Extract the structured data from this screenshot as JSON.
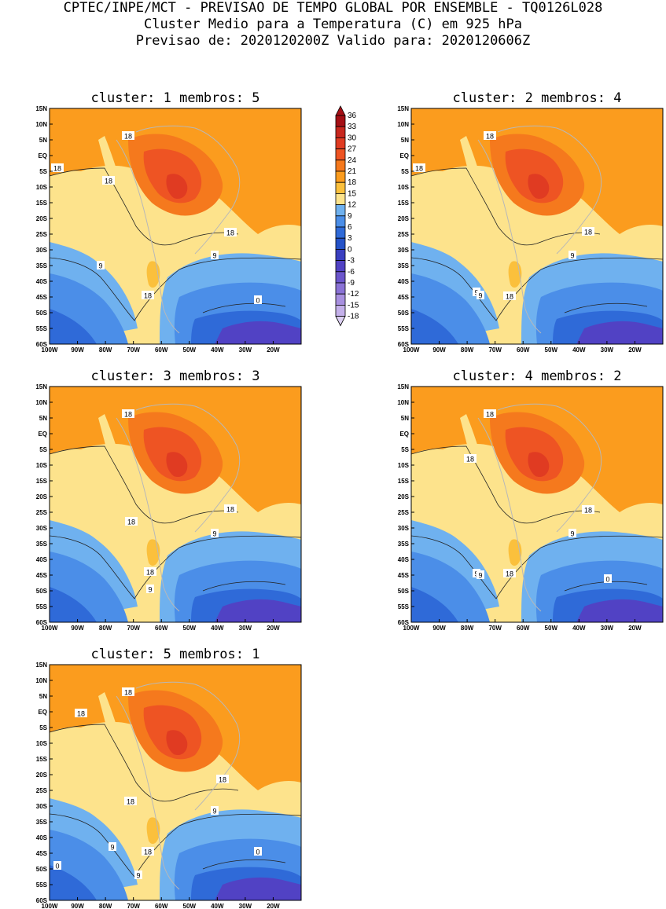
{
  "header": {
    "line1": "CPTEC/INPE/MCT - PREVISAO DE TEMPO GLOBAL POR ENSEMBLE - TQ0126L028",
    "line2": "Cluster Medio para a Temperatura (C) em 925 hPa",
    "line3": "Previsao de: 2020120200Z   Valido para: 2020120606Z"
  },
  "axes": {
    "lat_labels": [
      "15N",
      "10N",
      "5N",
      "EQ",
      "5S",
      "10S",
      "15S",
      "20S",
      "25S",
      "30S",
      "35S",
      "40S",
      "45S",
      "50S",
      "55S",
      "60S"
    ],
    "lon_labels": [
      "100W",
      "90W",
      "80W",
      "70W",
      "60W",
      "50W",
      "40W",
      "30W",
      "20W"
    ]
  },
  "colorbar": {
    "levels": [
      "36",
      "33",
      "30",
      "27",
      "24",
      "21",
      "18",
      "15",
      "12",
      "9",
      "6",
      "3",
      "0",
      "-3",
      "-6",
      "-9",
      "-12",
      "-15",
      "-18"
    ],
    "colors": [
      "#a50f15",
      "#c8271e",
      "#e03b22",
      "#ee5423",
      "#f5791d",
      "#fb9c1e",
      "#fbc03c",
      "#fde38c",
      "#6fb1ef",
      "#4b8ee8",
      "#2f6ad8",
      "#2452c8",
      "#3a3fc0",
      "#5142c4",
      "#6b55cc",
      "#8a72d6",
      "#a890e0",
      "#c4b0ea",
      "#dcd0f2"
    ]
  },
  "panels": [
    {
      "title": "cluster: 1   membros: 5",
      "contour_labels": [
        "18",
        "18",
        "18",
        "18",
        "9",
        "9",
        "18",
        "0"
      ]
    },
    {
      "title": "cluster: 2   membros: 4",
      "contour_labels": [
        "18",
        "18",
        "18",
        "9",
        "9",
        "9",
        "18"
      ]
    },
    {
      "title": "cluster: 3   membros: 3",
      "contour_labels": [
        "18",
        "18",
        "18",
        "9",
        "18",
        "9"
      ]
    },
    {
      "title": "cluster: 4   membros: 2",
      "contour_labels": [
        "18",
        "18",
        "18",
        "9",
        "9",
        "9",
        "18",
        "0"
      ]
    },
    {
      "title": "cluster: 5   membros: 1",
      "contour_labels": [
        "18",
        "18",
        "18",
        "18",
        "9",
        "9",
        "18",
        "9",
        "0",
        "0"
      ]
    }
  ]
}
